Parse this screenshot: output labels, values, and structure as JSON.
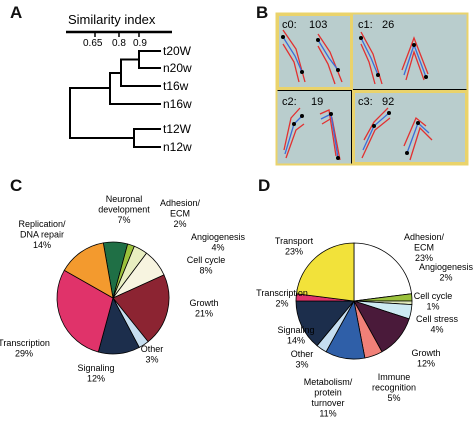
{
  "panels": {
    "A": {
      "letter": "A",
      "axis_title": "Similarity index",
      "ticks": [
        "0.65",
        "0.8",
        "0.9"
      ],
      "leaves": [
        "t20W",
        "n20w",
        "t16w",
        "n16w",
        "t12W",
        "n12w"
      ]
    },
    "B": {
      "letter": "B",
      "clusters": [
        {
          "id": "c0:",
          "count": "103"
        },
        {
          "id": "c1:",
          "count": "26"
        },
        {
          "id": "c2:",
          "count": "19"
        },
        {
          "id": "c3:",
          "count": "92"
        }
      ]
    },
    "C": {
      "letter": "C",
      "labels": [
        {
          "lines": [
            "Neuronal",
            "development",
            "7%"
          ]
        },
        {
          "lines": [
            "Adhesion/",
            "ECM",
            "2%"
          ]
        },
        {
          "lines": [
            "Angiogenesis",
            "4%"
          ]
        },
        {
          "lines": [
            "Cell cycle",
            "8%"
          ]
        },
        {
          "lines": [
            "Growth",
            "21%"
          ]
        },
        {
          "lines": [
            "Other",
            "3%"
          ]
        },
        {
          "lines": [
            "Signaling",
            "12%"
          ]
        },
        {
          "lines": [
            "Transcription",
            "29%"
          ]
        },
        {
          "lines": [
            "Replication/",
            "DNA repair",
            "14%"
          ]
        }
      ]
    },
    "D": {
      "letter": "D",
      "labels": [
        {
          "lines": [
            "Adhesion/",
            "ECM",
            "23%"
          ]
        },
        {
          "lines": [
            "Angiogenesis",
            "2%"
          ]
        },
        {
          "lines": [
            "Cell cycle",
            "1%"
          ]
        },
        {
          "lines": [
            "Cell stress",
            "4%"
          ]
        },
        {
          "lines": [
            "Growth",
            "12%"
          ]
        },
        {
          "lines": [
            "Immune",
            "recognition",
            "5%"
          ]
        },
        {
          "lines": [
            "Metabolism/",
            "protein",
            "turnover",
            "11%"
          ]
        },
        {
          "lines": [
            "Other",
            "3%"
          ]
        },
        {
          "lines": [
            "Signaling",
            "14%"
          ]
        },
        {
          "lines": [
            "Transcription",
            "2%"
          ]
        },
        {
          "lines": [
            "Transport",
            "23%"
          ]
        }
      ]
    }
  },
  "chart_data": [
    {
      "type": "pie",
      "categories": [
        "Neuronal development",
        "Adhesion/ECM",
        "Angiogenesis",
        "Cell cycle",
        "Growth",
        "Other",
        "Signaling",
        "Transcription",
        "Replication/DNA repair"
      ],
      "values": [
        7,
        2,
        4,
        8,
        21,
        3,
        12,
        29,
        14
      ],
      "colors": [
        "#1f6f45",
        "#9bc13c",
        "#e8eec0",
        "#f7f4e0",
        "#8c2432",
        "#c6def0",
        "#1c2e4c",
        "#e0336a",
        "#f39a2e"
      ]
    },
    {
      "type": "pie",
      "categories": [
        "Adhesion/ECM",
        "Angiogenesis",
        "Cell cycle",
        "Cell stress",
        "Growth",
        "Immune recognition",
        "Metabolism/protein turnover",
        "Other",
        "Signaling",
        "Transcription",
        "Transport"
      ],
      "values": [
        23,
        2,
        1,
        4,
        12,
        5,
        11,
        3,
        14,
        2,
        23
      ],
      "colors": [
        "#ffffff",
        "#9bc13c",
        "#dfe9b8",
        "#cdeaf2",
        "#4a1a3a",
        "#f08078",
        "#2f5fa8",
        "#c6def0",
        "#1c2e4c",
        "#e0336a",
        "#f2e23a"
      ]
    }
  ]
}
